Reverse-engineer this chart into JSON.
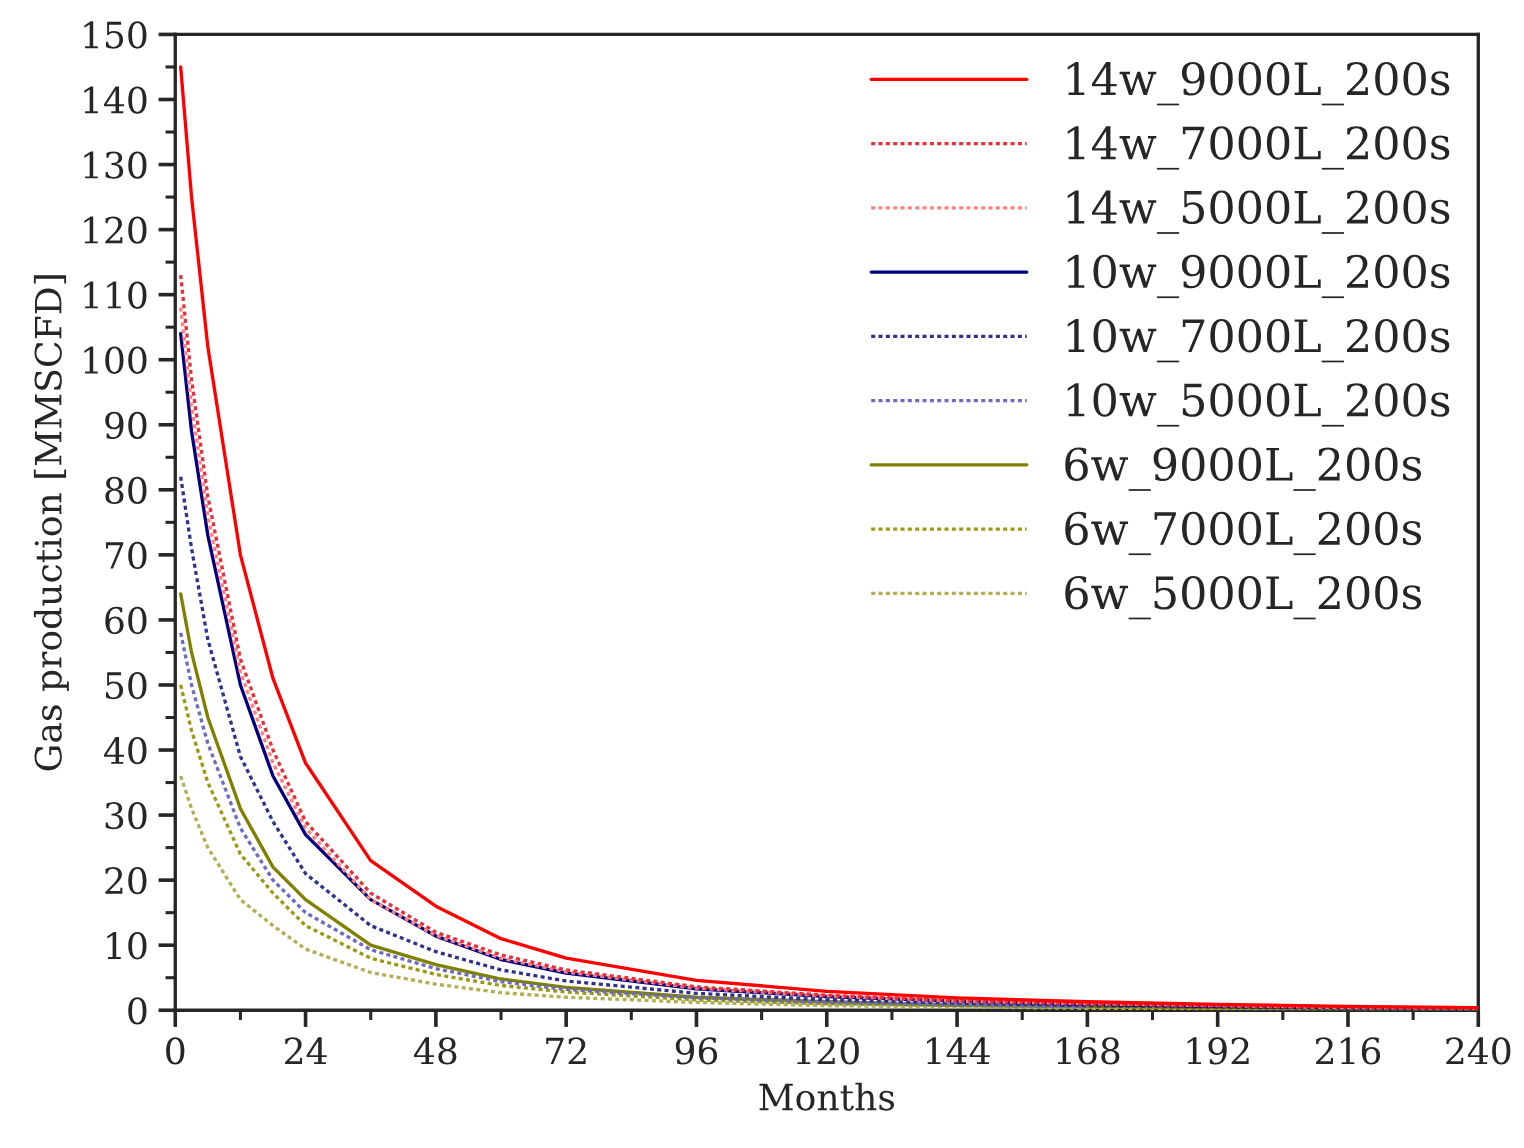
{
  "chart_data": {
    "type": "line",
    "xlabel": "Months",
    "ylabel": "Gas production [MMSCFD]",
    "x": [
      1,
      3,
      6,
      12,
      18,
      24,
      36,
      48,
      60,
      72,
      96,
      120,
      144,
      168,
      192,
      216,
      240
    ],
    "xlim": [
      0,
      240
    ],
    "xticks": [
      0,
      24,
      48,
      72,
      96,
      120,
      144,
      168,
      192,
      216,
      240
    ],
    "ylim": [
      0,
      150
    ],
    "yticks": [
      0,
      10,
      20,
      30,
      40,
      50,
      60,
      70,
      80,
      90,
      100,
      110,
      120,
      130,
      140,
      150
    ],
    "grid": false,
    "legend": "top right",
    "marker": "none",
    "series": [
      {
        "name": "14w_9000L_200s",
        "color": "#ff0000",
        "line_style": "solid",
        "values": [
          145,
          125,
          102,
          70,
          51,
          38,
          23,
          16,
          11,
          8,
          4.6,
          2.9,
          1.9,
          1.3,
          0.9,
          0.6,
          0.4
        ]
      },
      {
        "name": "14w_7000L_200s",
        "color": "#e8303a",
        "line_style": "dotted",
        "values": [
          113,
          97,
          79,
          54,
          40,
          29,
          18,
          12,
          8.5,
          6.2,
          3.6,
          2.3,
          1.5,
          1,
          0.7,
          0.5,
          0.3
        ]
      },
      {
        "name": "14w_5000L_200s",
        "color": "#ff8080",
        "line_style": "dotted",
        "values": [
          108,
          93,
          76,
          52,
          38,
          28,
          17,
          11.5,
          8,
          5.9,
          3.4,
          2.2,
          1.4,
          1,
          0.7,
          0.4,
          0.3
        ]
      },
      {
        "name": "10w_9000L_200s",
        "color": "#000080",
        "line_style": "solid",
        "values": [
          104,
          89,
          73,
          50,
          36,
          27,
          17,
          11.4,
          7.8,
          5.7,
          3.3,
          2.1,
          1.4,
          0.9,
          0.6,
          0.4,
          0.3
        ]
      },
      {
        "name": "10w_7000L_200s",
        "color": "#303090",
        "line_style": "dotted",
        "values": [
          82,
          71,
          57,
          39,
          29,
          21,
          13,
          9,
          6.2,
          4.5,
          2.6,
          1.6,
          1.1,
          0.7,
          0.5,
          0.3,
          0.2
        ]
      },
      {
        "name": "10w_5000L_200s",
        "color": "#6a6ac8",
        "line_style": "dotted",
        "values": [
          58,
          50,
          41,
          28,
          20,
          15,
          9.3,
          6.4,
          4.4,
          3.2,
          1.9,
          1.2,
          0.8,
          0.5,
          null,
          null,
          null
        ]
      },
      {
        "name": "6w_9000L_200s",
        "color": "#808000",
        "line_style": "solid",
        "values": [
          64,
          55,
          45,
          31,
          22,
          17,
          10,
          7,
          4.8,
          3.5,
          2,
          1.3,
          0.8,
          0.6,
          0.4,
          0.3,
          0.2
        ]
      },
      {
        "name": "6w_7000L_200s",
        "color": "#9a9a10",
        "line_style": "dotted",
        "values": [
          50,
          43,
          35,
          24,
          18,
          13,
          8,
          5.5,
          3.8,
          2.8,
          1.6,
          1,
          0.7,
          0.5,
          0.3,
          0.2,
          0.2
        ]
      },
      {
        "name": "6w_5000L_200s",
        "color": "#b0b050",
        "line_style": "dotted",
        "values": [
          36,
          31,
          25,
          17,
          13,
          9.4,
          5.8,
          4,
          2.7,
          2,
          1.2,
          0.7,
          0.5,
          0.3,
          0.2,
          0.1,
          0.1
        ]
      }
    ]
  }
}
